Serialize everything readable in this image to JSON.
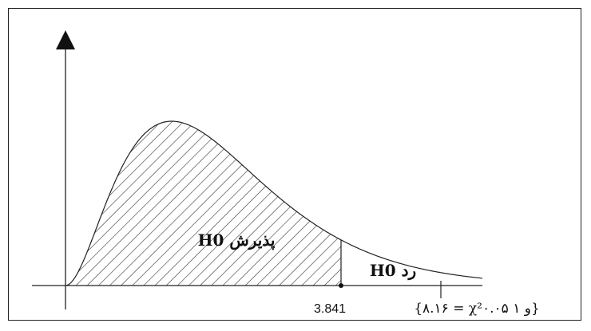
{
  "diagram": {
    "type": "chi-square-rejection-region",
    "accept_region_label": "پذیرش H0",
    "reject_region_label": "رد H0",
    "critical_value_label": "3.841",
    "statistic_label": "{۸.۱۶ = χ²۰.۰۵ و ۱}"
  },
  "chart_data": {
    "type": "area",
    "distribution": "chi-square",
    "critical_value": 3.841,
    "test_statistic": 8.16,
    "title": "",
    "xlabel": "",
    "ylabel": "",
    "regions": [
      {
        "name": "پذیرش H0",
        "from": 0,
        "to": 3.841,
        "hatched": true
      },
      {
        "name": "رد H0",
        "from": 3.841,
        "to": null,
        "hatched": false
      }
    ]
  },
  "colors": {
    "stroke": "#222222",
    "hatch": "#333333",
    "background": "#ffffff"
  }
}
